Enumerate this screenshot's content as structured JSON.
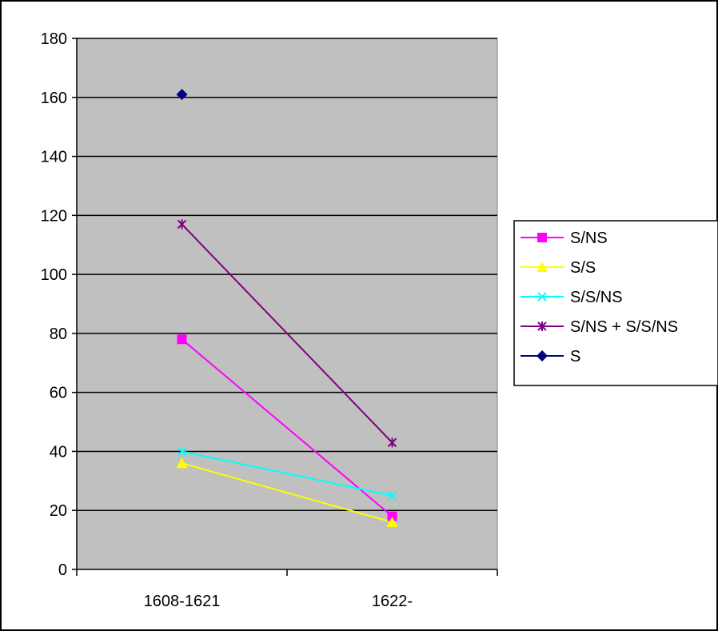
{
  "chart_data": {
    "type": "line",
    "categories": [
      "1608-1621",
      "1622-"
    ],
    "ylim": [
      0,
      180
    ],
    "yticks": [
      0,
      20,
      40,
      60,
      80,
      100,
      120,
      140,
      160,
      180
    ],
    "grid": true,
    "legend": "right",
    "plot_background": "#c0c0c0",
    "series": [
      {
        "name": "S/NS",
        "values": [
          78,
          18
        ],
        "color": "#ff00ff",
        "marker": "square"
      },
      {
        "name": "S/S",
        "values": [
          36,
          16
        ],
        "color": "#ffff00",
        "marker": "triangle"
      },
      {
        "name": "S/S/NS",
        "values": [
          40,
          25
        ],
        "color": "#00ffff",
        "marker": "x"
      },
      {
        "name": "S/NS + S/S/NS",
        "values": [
          117,
          43
        ],
        "color": "#800080",
        "marker": "star"
      },
      {
        "name": "S",
        "values": [
          161,
          null
        ],
        "color": "#000080",
        "marker": "diamond"
      }
    ]
  }
}
